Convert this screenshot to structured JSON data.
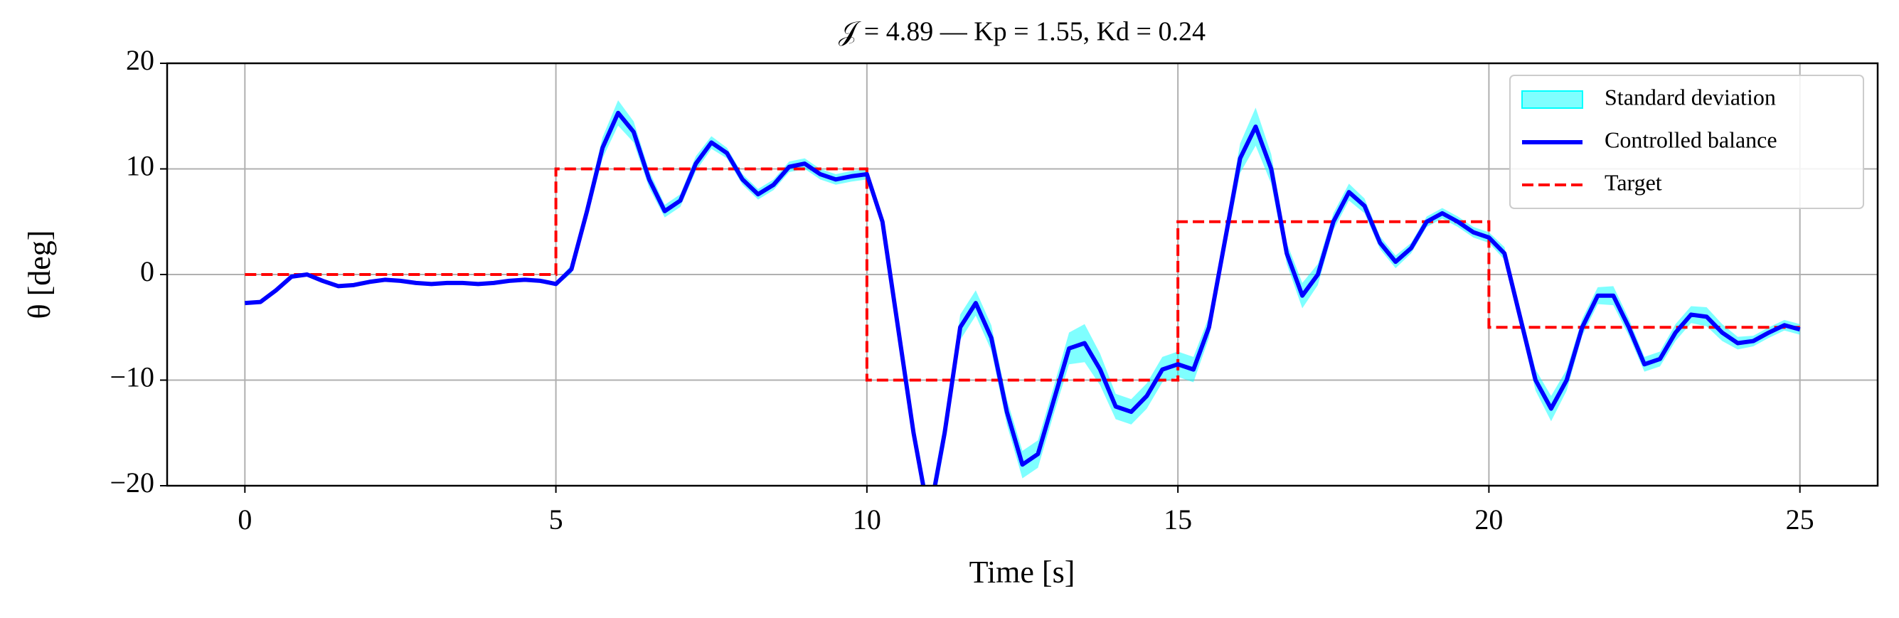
{
  "chart_data": {
    "type": "line",
    "title": "𝒥 = 4.89 — Kp = 1.55, Kd = 0.24",
    "xlabel": "Time [s]",
    "ylabel": "θ [deg]",
    "xlim": [
      -1.25,
      26.25
    ],
    "ylim": [
      -20,
      20
    ],
    "xticks": [
      0,
      5,
      10,
      15,
      20,
      25
    ],
    "yticks": [
      {
        "value": -20,
        "label": "−20"
      },
      {
        "value": -10,
        "label": "−10"
      },
      0,
      10,
      20
    ],
    "grid": true,
    "legend": "upper right",
    "x": [
      0,
      0.25,
      0.5,
      0.75,
      1,
      1.25,
      1.5,
      1.75,
      2,
      2.25,
      2.5,
      2.75,
      3,
      3.25,
      3.5,
      3.75,
      4,
      4.25,
      4.5,
      4.75,
      5,
      5.25,
      5.5,
      5.75,
      6,
      6.25,
      6.5,
      6.75,
      7,
      7.25,
      7.5,
      7.75,
      8,
      8.25,
      8.5,
      8.75,
      9,
      9.25,
      9.5,
      9.75,
      10,
      10.25,
      10.5,
      10.75,
      11,
      11.25,
      11.5,
      11.75,
      12,
      12.25,
      12.5,
      12.75,
      13,
      13.25,
      13.5,
      13.75,
      14,
      14.25,
      14.5,
      14.75,
      15,
      15.25,
      15.5,
      15.75,
      16,
      16.25,
      16.5,
      16.75,
      17,
      17.25,
      17.5,
      17.75,
      18,
      18.25,
      18.5,
      18.75,
      19,
      19.25,
      19.5,
      19.75,
      20,
      20.25,
      20.5,
      20.75,
      21,
      21.25,
      21.5,
      21.75,
      22,
      22.25,
      22.5,
      22.75,
      23,
      23.25,
      23.5,
      23.75,
      24,
      24.25,
      24.5,
      24.75,
      25
    ],
    "series": [
      {
        "name": "Standard deviation",
        "color": "#00ffff",
        "values": [
          0.1,
          0.1,
          0.1,
          0.1,
          0.1,
          0.1,
          0.1,
          0.1,
          0.1,
          0.1,
          0.1,
          0.1,
          0.1,
          0.1,
          0.1,
          0.1,
          0.1,
          0.1,
          0.1,
          0.1,
          0.2,
          0.4,
          0.8,
          1,
          1.2,
          1,
          0.8,
          0.6,
          0.6,
          0.7,
          0.6,
          0.5,
          0.5,
          0.5,
          0.5,
          0.5,
          0.5,
          0.5,
          0.5,
          0.5,
          0.5,
          0.6,
          0.8,
          1,
          1.2,
          1.2,
          1.2,
          1.2,
          1.2,
          1.2,
          1.3,
          1.3,
          1.3,
          1.5,
          1.8,
          1.5,
          1.2,
          1.2,
          1.2,
          1.2,
          1.2,
          1.2,
          1,
          1,
          1.4,
          1.8,
          1.4,
          1,
          1.2,
          1,
          0.8,
          0.8,
          0.7,
          0.6,
          0.6,
          0.5,
          0.5,
          0.5,
          0.5,
          0.5,
          0.5,
          0.6,
          0.8,
          1,
          1.2,
          1,
          0.8,
          0.8,
          0.9,
          0.8,
          0.7,
          0.7,
          0.8,
          0.8,
          0.9,
          0.8,
          0.6,
          0.5,
          0.5,
          0.5,
          0.5
        ]
      },
      {
        "name": "Controlled balance",
        "color": "#0000ff",
        "values": [
          -2.7,
          -2.6,
          -1.5,
          -0.2,
          0,
          -0.6,
          -1.1,
          -1,
          -0.7,
          -0.5,
          -0.6,
          -0.8,
          -0.9,
          -0.8,
          -0.8,
          -0.9,
          -0.8,
          -0.6,
          -0.5,
          -0.6,
          -0.9,
          0.5,
          6,
          12,
          15.3,
          13.5,
          9,
          6,
          7,
          10.5,
          12.5,
          11.5,
          9,
          7.6,
          8.5,
          10.2,
          10.5,
          9.5,
          9,
          9.3,
          9.5,
          5,
          -5,
          -15,
          -23,
          -15,
          -5,
          -2.7,
          -6,
          -13,
          -18,
          -17,
          -12,
          -7,
          -6.5,
          -9,
          -12.5,
          -13,
          -11.5,
          -9,
          -8.5,
          -9,
          -5,
          3,
          11,
          14,
          10,
          2,
          -2,
          0,
          5,
          7.8,
          6.5,
          3,
          1.2,
          2.5,
          5,
          5.8,
          5,
          4,
          3.5,
          2,
          -4,
          -10,
          -12.7,
          -10,
          -5,
          -2,
          -2,
          -5,
          -8.5,
          -8,
          -5.5,
          -3.8,
          -4,
          -5.5,
          -6.5,
          -6.3,
          -5.5,
          -4.8,
          -5.2
        ]
      },
      {
        "name": "Target",
        "color": "#ff0000",
        "dashed": true,
        "x": [
          0,
          5,
          5,
          10,
          10,
          15,
          15,
          20,
          20,
          25
        ],
        "values": [
          0,
          0,
          10,
          10,
          -10,
          -10,
          5,
          5,
          -5,
          -5
        ]
      }
    ]
  }
}
